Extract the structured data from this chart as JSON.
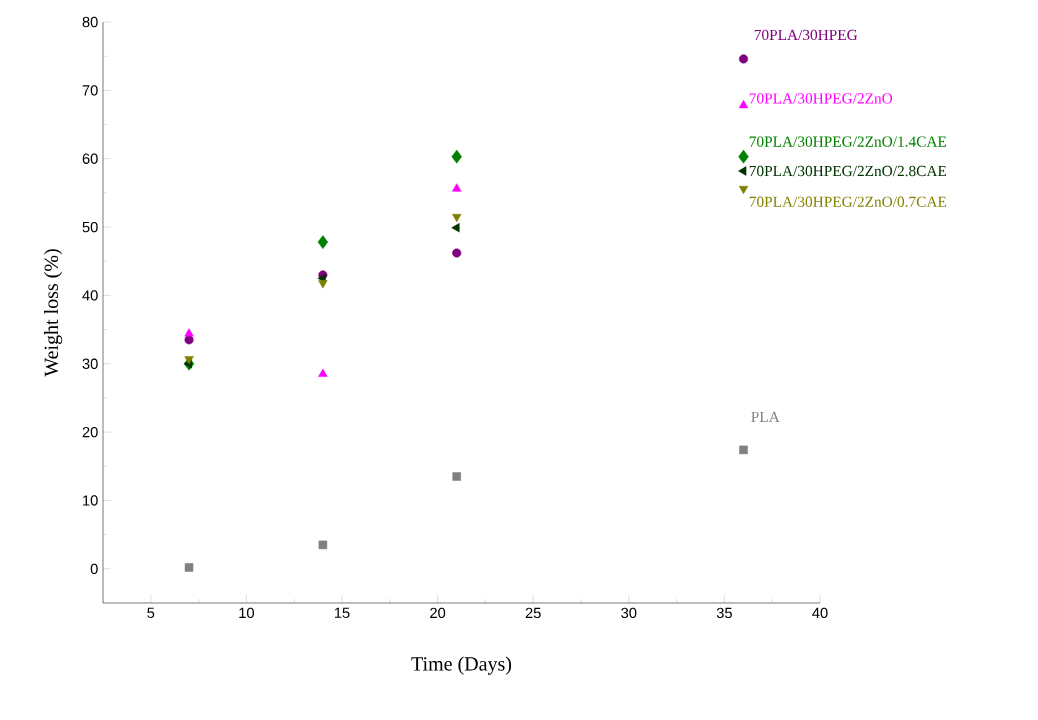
{
  "chart_data": {
    "type": "scatter",
    "xlabel": "Time (Days)",
    "ylabel": "Weight loss (%)",
    "x": [
      7,
      14,
      21,
      36
    ],
    "series": [
      {
        "name": "70PLA/30HPEG",
        "color": "#800080",
        "marker": "circle",
        "values": [
          33.5,
          43,
          46.2,
          74.6
        ]
      },
      {
        "name": "70PLA/30HPEG/2ZnO",
        "color": "#ff00ff",
        "marker": "triangle",
        "values": [
          34.4,
          28.5,
          55.6,
          67.8
        ]
      },
      {
        "name": "70PLA/30HPEG/2ZnO/1.4CAE",
        "color": "#008000",
        "marker": "diamond",
        "values": [
          30,
          47.8,
          60.3,
          60.3
        ]
      },
      {
        "name": "70PLA/30HPEG/2ZnO/2.8CAE",
        "color": "#003300",
        "marker": "triangle-left",
        "values": [
          30,
          42.5,
          49.9,
          58.2
        ]
      },
      {
        "name": "70PLA/30HPEG/2ZnO/0.7CAE",
        "color": "#808000",
        "marker": "triangle-down",
        "values": [
          30.7,
          41.8,
          51.5,
          55.6
        ]
      },
      {
        "name": "PLA",
        "color": "#808080",
        "marker": "square",
        "values": [
          0.2,
          3.5,
          13.5,
          17.4
        ]
      }
    ],
    "xlim": [
      2.5,
      40
    ],
    "xticks": [
      5,
      10,
      15,
      20,
      25,
      30,
      35,
      40
    ],
    "ylim": [
      -5,
      80
    ],
    "yticks": [
      0,
      10,
      20,
      30,
      40,
      50,
      60,
      70,
      80
    ]
  }
}
